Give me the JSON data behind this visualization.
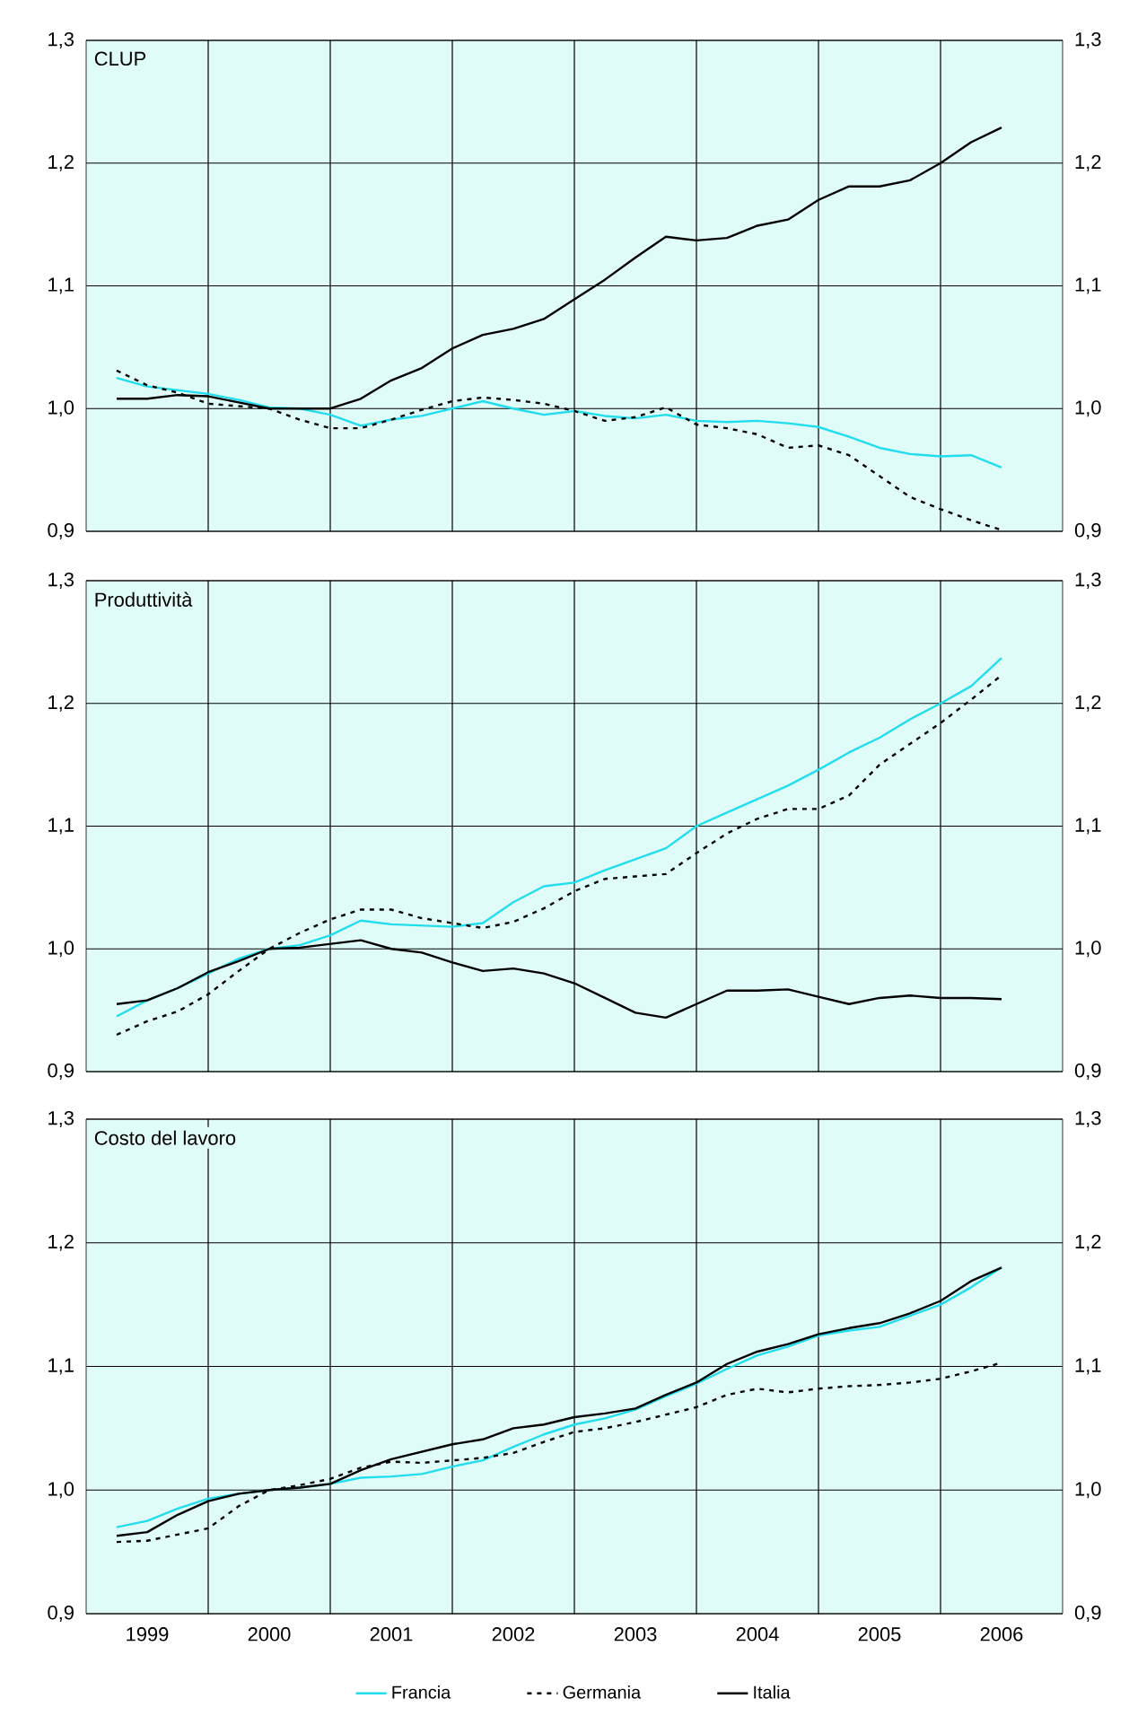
{
  "chart_data": [
    {
      "type": "line",
      "title": "CLUP",
      "grid": true,
      "marker": "none",
      "tick_labels": "y",
      "x": [
        1999.25,
        1999.5,
        1999.75,
        2000,
        2000.25,
        2000.5,
        2000.75,
        2001,
        2001.25,
        2001.5,
        2001.75,
        2002,
        2002.25,
        2002.5,
        2002.75,
        2003,
        2003.25,
        2003.5,
        2003.75,
        2004,
        2004.25,
        2004.5,
        2004.75,
        2005,
        2005.25,
        2005.5,
        2005.75,
        2006,
        2006.25,
        2006.5
      ],
      "xlim": [
        1999,
        2007
      ],
      "xticks": [
        {
          "value": 2000,
          "label": null
        },
        {
          "value": 2001,
          "label": null
        },
        {
          "value": 2002,
          "label": null
        },
        {
          "value": 2003,
          "label": null
        },
        {
          "value": 2004,
          "label": null
        },
        {
          "value": 2005,
          "label": null
        },
        {
          "value": 2006,
          "label": null
        }
      ],
      "ylim": [
        0.9,
        1.3
      ],
      "yticks": [
        {
          "value": 0.9,
          "label": "0,9"
        },
        {
          "value": 1.0,
          "label": "1,0"
        },
        {
          "value": 1.1,
          "label": "1,1"
        },
        {
          "value": 1.2,
          "label": "1,2"
        },
        {
          "value": 1.3,
          "label": "1,3"
        }
      ],
      "y2lim": [
        0.9,
        1.3
      ],
      "y2ticks": [
        {
          "value": 0.9,
          "label": "0,9"
        },
        {
          "value": 1.0,
          "label": "1,0"
        },
        {
          "value": 1.1,
          "label": "1,1"
        },
        {
          "value": 1.2,
          "label": "1,2"
        },
        {
          "value": 1.3,
          "label": "1,3"
        }
      ],
      "series": [
        {
          "color": "#22ddee",
          "line_style": "solid",
          "values": [
            1.025,
            1.018,
            1.015,
            1.012,
            1.007,
            1.001,
            1.0,
            0.995,
            0.986,
            0.991,
            0.994,
            1.0,
            1.006,
            1.0,
            0.995,
            0.998,
            0.994,
            0.992,
            0.995,
            0.99,
            0.989,
            0.99,
            0.988,
            0.985,
            0.977,
            0.968,
            0.963,
            0.961,
            0.962,
            0.952
          ]
        },
        {
          "color": "#000000",
          "line_style": "dashed",
          "values": [
            1.031,
            1.019,
            1.013,
            1.004,
            1.002,
            1.0,
            0.991,
            0.984,
            0.984,
            0.991,
            0.999,
            1.006,
            1.009,
            1.007,
            1.004,
            0.998,
            0.99,
            0.993,
            1.001,
            0.987,
            0.984,
            0.979,
            0.968,
            0.97,
            0.962,
            0.945,
            0.928,
            0.918,
            0.909,
            0.901
          ]
        },
        {
          "color": "#000000",
          "line_style": "solid",
          "values": [
            1.008,
            1.008,
            1.011,
            1.01,
            1.005,
            1.0,
            1.0,
            1.0,
            1.008,
            1.023,
            1.033,
            1.049,
            1.06,
            1.065,
            1.073,
            1.089,
            1.105,
            1.123,
            1.14,
            1.137,
            1.139,
            1.149,
            1.154,
            1.17,
            1.181,
            1.181,
            1.186,
            1.2,
            1.217,
            1.229
          ]
        }
      ]
    },
    {
      "type": "line",
      "title": "Produttività",
      "grid": true,
      "marker": "none",
      "tick_labels": "y",
      "x": [
        1999.25,
        1999.5,
        1999.75,
        2000,
        2000.25,
        2000.5,
        2000.75,
        2001,
        2001.25,
        2001.5,
        2001.75,
        2002,
        2002.25,
        2002.5,
        2002.75,
        2003,
        2003.25,
        2003.5,
        2003.75,
        2004,
        2004.25,
        2004.5,
        2004.75,
        2005,
        2005.25,
        2005.5,
        2005.75,
        2006,
        2006.25,
        2006.5
      ],
      "xlim": [
        1999,
        2007
      ],
      "xticks": [
        {
          "value": 2000,
          "label": null
        },
        {
          "value": 2001,
          "label": null
        },
        {
          "value": 2002,
          "label": null
        },
        {
          "value": 2003,
          "label": null
        },
        {
          "value": 2004,
          "label": null
        },
        {
          "value": 2005,
          "label": null
        },
        {
          "value": 2006,
          "label": null
        }
      ],
      "ylim": [
        0.9,
        1.3
      ],
      "yticks": [
        {
          "value": 0.9,
          "label": "0,9"
        },
        {
          "value": 1.0,
          "label": "1,0"
        },
        {
          "value": 1.1,
          "label": "1,1"
        },
        {
          "value": 1.2,
          "label": "1,2"
        },
        {
          "value": 1.3,
          "label": "1,3"
        }
      ],
      "y2lim": [
        0.9,
        1.3
      ],
      "y2ticks": [
        {
          "value": 0.9,
          "label": "0,9"
        },
        {
          "value": 1.0,
          "label": "1,0"
        },
        {
          "value": 1.1,
          "label": "1,1"
        },
        {
          "value": 1.2,
          "label": "1,2"
        },
        {
          "value": 1.3,
          "label": "1,3"
        }
      ],
      "series": [
        {
          "color": "#22ddee",
          "line_style": "solid",
          "values": [
            0.945,
            0.958,
            0.968,
            0.98,
            0.992,
            1.0,
            1.003,
            1.011,
            1.023,
            1.02,
            1.019,
            1.018,
            1.021,
            1.038,
            1.051,
            1.054,
            1.064,
            1.073,
            1.082,
            1.1,
            1.111,
            1.122,
            1.133,
            1.146,
            1.16,
            1.172,
            1.187,
            1.2,
            1.214,
            1.237
          ]
        },
        {
          "color": "#000000",
          "line_style": "dashed",
          "values": [
            0.93,
            0.941,
            0.949,
            0.963,
            0.982,
            1.0,
            1.013,
            1.024,
            1.032,
            1.032,
            1.025,
            1.021,
            1.017,
            1.022,
            1.033,
            1.047,
            1.057,
            1.059,
            1.061,
            1.078,
            1.094,
            1.106,
            1.114,
            1.114,
            1.125,
            1.15,
            1.167,
            1.184,
            1.203,
            1.223
          ]
        },
        {
          "color": "#000000",
          "line_style": "solid",
          "values": [
            0.955,
            0.958,
            0.968,
            0.981,
            0.99,
            1.0,
            1.001,
            1.004,
            1.007,
            1.0,
            0.997,
            0.989,
            0.982,
            0.984,
            0.98,
            0.972,
            0.96,
            0.948,
            0.944,
            0.955,
            0.966,
            0.966,
            0.967,
            0.961,
            0.955,
            0.96,
            0.962,
            0.96,
            0.96,
            0.959
          ]
        }
      ]
    },
    {
      "type": "line",
      "title": "Costo del lavoro",
      "grid": true,
      "marker": "none",
      "legend": "bottom",
      "x": [
        1999.25,
        1999.5,
        1999.75,
        2000,
        2000.25,
        2000.5,
        2000.75,
        2001,
        2001.25,
        2001.5,
        2001.75,
        2002,
        2002.25,
        2002.5,
        2002.75,
        2003,
        2003.25,
        2003.5,
        2003.75,
        2004,
        2004.25,
        2004.5,
        2004.75,
        2005,
        2005.25,
        2005.5,
        2005.75,
        2006,
        2006.25,
        2006.5
      ],
      "xlim": [
        1999,
        2007
      ],
      "xticks": [
        {
          "value": 1999.5,
          "label": "1999"
        },
        {
          "value": 2000,
          "label": null
        },
        {
          "value": 2000.5,
          "label": "2000"
        },
        {
          "value": 2001,
          "label": null
        },
        {
          "value": 2001.5,
          "label": "2001"
        },
        {
          "value": 2002,
          "label": null
        },
        {
          "value": 2002.5,
          "label": "2002"
        },
        {
          "value": 2003,
          "label": null
        },
        {
          "value": 2003.5,
          "label": "2003"
        },
        {
          "value": 2004,
          "label": null
        },
        {
          "value": 2004.5,
          "label": "2004"
        },
        {
          "value": 2005,
          "label": null
        },
        {
          "value": 2005.5,
          "label": "2005"
        },
        {
          "value": 2006,
          "label": null
        },
        {
          "value": 2006.5,
          "label": "2006"
        }
      ],
      "ylim": [
        0.9,
        1.3
      ],
      "yticks": [
        {
          "value": 0.9,
          "label": "0,9"
        },
        {
          "value": 1.0,
          "label": "1,0"
        },
        {
          "value": 1.1,
          "label": "1,1"
        },
        {
          "value": 1.2,
          "label": "1,2"
        },
        {
          "value": 1.3,
          "label": "1,3"
        }
      ],
      "y2lim": [
        0.9,
        1.3
      ],
      "y2ticks": [
        {
          "value": 0.9,
          "label": "0,9"
        },
        {
          "value": 1.0,
          "label": "1,0"
        },
        {
          "value": 1.1,
          "label": "1,1"
        },
        {
          "value": 1.2,
          "label": "1,2"
        },
        {
          "value": 1.3,
          "label": "1,3"
        }
      ],
      "series": [
        {
          "name": "Francia",
          "color": "#22ddee",
          "line_style": "solid",
          "values": [
            0.97,
            0.975,
            0.985,
            0.993,
            0.997,
            1.0,
            1.002,
            1.005,
            1.01,
            1.011,
            1.013,
            1.019,
            1.024,
            1.035,
            1.045,
            1.053,
            1.058,
            1.065,
            1.076,
            1.086,
            1.098,
            1.109,
            1.116,
            1.125,
            1.129,
            1.132,
            1.141,
            1.15,
            1.164,
            1.18
          ]
        },
        {
          "name": "Germania",
          "color": "#000000",
          "line_style": "dashed",
          "values": [
            0.958,
            0.959,
            0.964,
            0.969,
            0.987,
            1.0,
            1.004,
            1.009,
            1.018,
            1.023,
            1.022,
            1.024,
            1.026,
            1.03,
            1.039,
            1.047,
            1.05,
            1.055,
            1.061,
            1.067,
            1.077,
            1.082,
            1.079,
            1.082,
            1.084,
            1.085,
            1.087,
            1.09,
            1.096,
            1.103
          ]
        },
        {
          "name": "Italia",
          "color": "#000000",
          "line_style": "solid",
          "values": [
            0.963,
            0.966,
            0.98,
            0.991,
            0.997,
            1.0,
            1.002,
            1.005,
            1.016,
            1.025,
            1.031,
            1.037,
            1.041,
            1.05,
            1.053,
            1.059,
            1.062,
            1.066,
            1.077,
            1.087,
            1.102,
            1.112,
            1.118,
            1.126,
            1.131,
            1.135,
            1.143,
            1.153,
            1.169,
            1.18
          ]
        }
      ]
    }
  ]
}
